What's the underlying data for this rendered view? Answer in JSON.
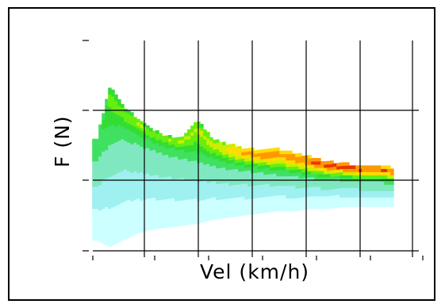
{
  "chart_data": {
    "type": "heatmap",
    "title": "",
    "xlabel": "Vel (km/h)",
    "ylabel": "F (N)",
    "x_tick_labels": [],
    "y_tick_labels": [],
    "grid": true,
    "legend": "none",
    "colormap": [
      "#ccffff",
      "#9ff0f0",
      "#80e8c0",
      "#40e060",
      "#33dd33",
      "#66ee11",
      "#ccee00",
      "#ffdd00",
      "#ff9900",
      "#ee3300"
    ],
    "density_profile": {
      "x_samples": [
        0.04,
        0.08,
        0.12,
        0.16,
        0.2,
        0.25,
        0.3,
        0.35,
        0.4,
        0.45,
        0.5,
        0.55,
        0.6,
        0.65,
        0.7,
        0.75,
        0.8,
        0.85,
        0.9,
        0.95
      ],
      "upper_edge": [
        0.53,
        0.78,
        0.68,
        0.63,
        0.58,
        0.54,
        0.53,
        0.62,
        0.52,
        0.5,
        0.48,
        0.47,
        0.48,
        0.46,
        0.44,
        0.42,
        0.41,
        0.4,
        0.4,
        0.39
      ],
      "ridge": [
        0.45,
        0.55,
        0.57,
        0.54,
        0.51,
        0.48,
        0.46,
        0.44,
        0.42,
        0.4,
        0.39,
        0.38,
        0.37,
        0.36,
        0.35,
        0.34,
        0.34,
        0.33,
        0.33,
        0.32
      ],
      "lower_edge": [
        0.05,
        0.02,
        0.05,
        0.08,
        0.1,
        0.11,
        0.12,
        0.13,
        0.15,
        0.16,
        0.17,
        0.18,
        0.19,
        0.19,
        0.2,
        0.2,
        0.21,
        0.21,
        0.21,
        0.21
      ],
      "peak_intensity": [
        0.3,
        0.55,
        0.58,
        0.6,
        0.6,
        0.6,
        0.62,
        0.62,
        0.65,
        0.75,
        0.85,
        0.88,
        0.85,
        0.88,
        0.92,
        0.95,
        0.97,
        0.95,
        0.92,
        0.9
      ]
    }
  }
}
